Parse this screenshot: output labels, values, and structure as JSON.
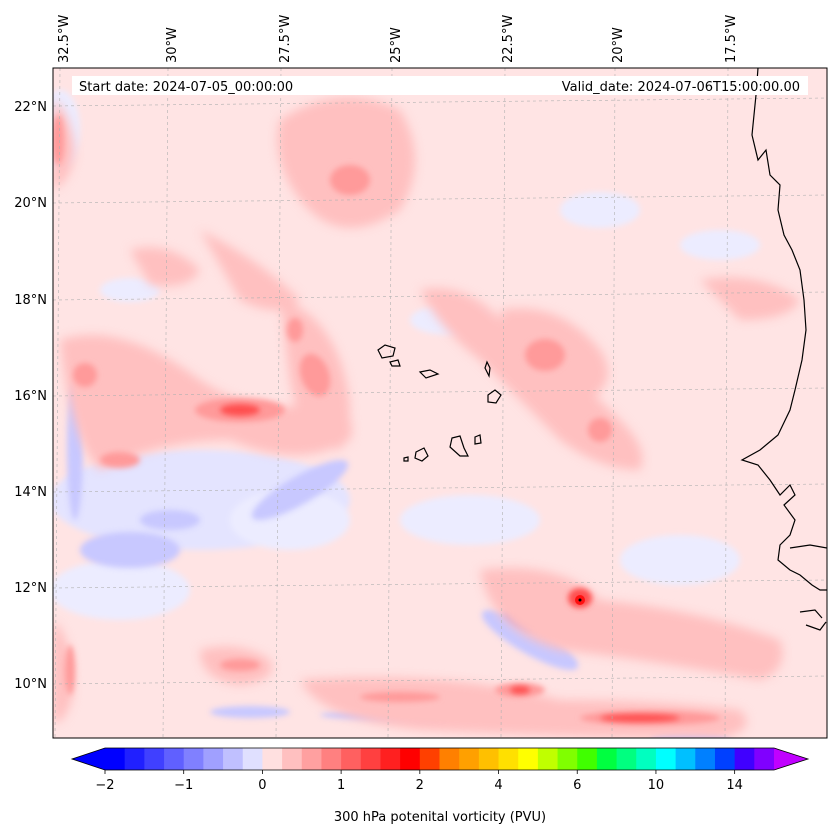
{
  "map": {
    "start_label": "Start date: 2024-07-05_00:00:00",
    "valid_label": "Valid_date: 2024-07-06T15:00:00.00",
    "lon_labels": [
      "32.5°W",
      "30°W",
      "27.5°W",
      "25°W",
      "22.5°W",
      "20°W",
      "17.5°W"
    ],
    "lat_labels": [
      "22°N",
      "20°N",
      "18°N",
      "16°N",
      "14°N",
      "12°N",
      "10°N"
    ],
    "region": "Cape Verde islands and West African coast",
    "variable": "300 hPa potential vorticity"
  },
  "colorbar": {
    "title": "300 hPa potenital vorticity (PVU)",
    "tick_labels": [
      "−2",
      "−1",
      "0",
      "1",
      "2",
      "4",
      "6",
      "10",
      "14"
    ],
    "tick_values": [
      -2,
      -1,
      0,
      1,
      2,
      4,
      6,
      10,
      14
    ],
    "extend": "both",
    "colors": [
      "#0000ff",
      "#2020ff",
      "#4040ff",
      "#6060ff",
      "#8080ff",
      "#a0a0ff",
      "#c0c0ff",
      "#e0e0ff",
      "#ffe0e0",
      "#ffc0c0",
      "#ffa0a0",
      "#ff8080",
      "#ff6060",
      "#ff4040",
      "#ff2020",
      "#ff0000",
      "#ff4000",
      "#ff8000",
      "#ffa000",
      "#ffc000",
      "#ffe000",
      "#ffff00",
      "#c0ff00",
      "#80ff00",
      "#40ff00",
      "#00ff40",
      "#00ff80",
      "#00ffc0",
      "#00ffff",
      "#00c0ff",
      "#0080ff",
      "#0040ff",
      "#4000ff",
      "#8000ff"
    ],
    "under_color": "#0000ff",
    "over_color": "#c000ff"
  }
}
